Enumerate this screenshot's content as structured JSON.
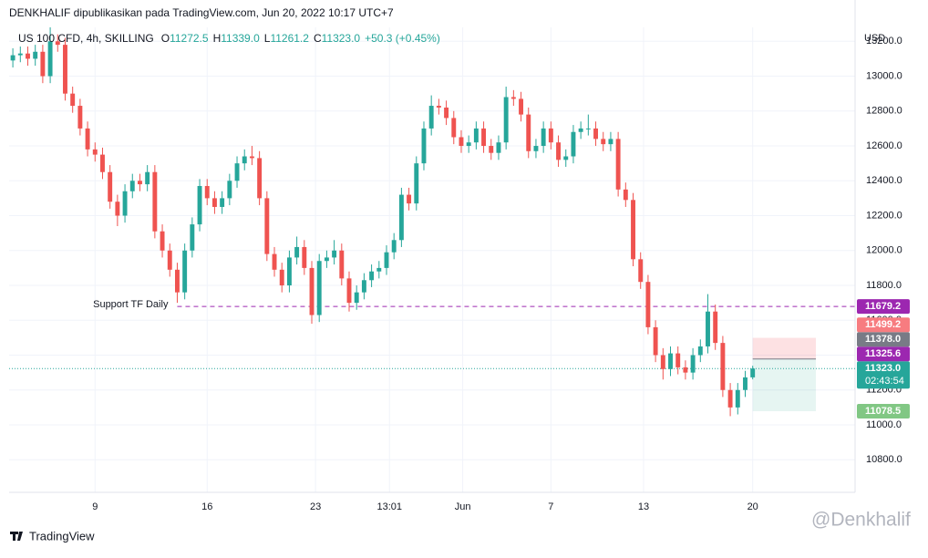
{
  "header": {
    "publisher": "DENKHALIF dipublikasikan pada TradingView.com, Jun 20, 2022 10:17 UTC+7",
    "symbol": "US 100 CFD, 4h, SKILLING",
    "items": [
      {
        "key": "O",
        "value": "11272.5"
      },
      {
        "key": "H",
        "value": "11339.0"
      },
      {
        "key": "L",
        "value": "11261.2"
      },
      {
        "key": "C",
        "value": "11323.0"
      }
    ],
    "change": "+50.3 (+0.45%)"
  },
  "footer": {
    "brand": "TradingView",
    "watermark": "@Denkhalif"
  },
  "chart_data": {
    "type": "candlestick",
    "currency": "USD",
    "up_color": "#26a69a",
    "down_color": "#ef5350",
    "grid": true,
    "x": [
      0,
      1,
      2,
      3,
      4,
      5,
      6,
      7,
      8,
      9,
      10,
      11,
      12,
      13,
      14,
      15,
      16,
      17,
      18,
      19,
      20,
      21,
      22,
      23,
      24,
      25,
      26,
      27,
      28,
      29,
      30,
      31,
      32,
      33,
      34,
      35,
      36,
      37,
      38,
      39,
      40,
      41,
      42,
      43,
      44,
      45,
      46,
      47,
      48,
      49,
      50,
      51,
      52,
      53,
      54,
      55,
      56,
      57,
      58,
      59,
      60,
      61,
      62,
      63,
      64,
      65,
      66,
      67,
      68,
      69,
      70,
      71,
      72,
      73,
      74,
      75,
      76,
      77,
      78,
      79,
      80,
      81,
      82,
      83,
      84,
      85,
      86,
      87,
      88,
      89,
      90,
      91,
      92,
      93,
      94,
      95,
      96,
      97,
      98,
      99
    ],
    "open": [
      13090,
      13120,
      13130,
      13100,
      13140,
      13000,
      13200,
      13180,
      12900,
      12830,
      12700,
      12580,
      12550,
      12450,
      12280,
      12200,
      12340,
      12400,
      12380,
      12450,
      12110,
      12000,
      11890,
      11760,
      12000,
      12150,
      12370,
      12300,
      12250,
      12300,
      12400,
      12500,
      12540,
      12530,
      12300,
      11980,
      11890,
      11800,
      11960,
      12020,
      11900,
      11630,
      11940,
      11960,
      12000,
      11840,
      11700,
      11760,
      11830,
      11880,
      11900,
      11990,
      12060,
      12320,
      12270,
      12500,
      12700,
      12830,
      12820,
      12760,
      12650,
      12600,
      12620,
      12700,
      12600,
      12560,
      12620,
      12880,
      12870,
      12780,
      12570,
      12600,
      12700,
      12620,
      12520,
      12540,
      12680,
      12700,
      12700,
      12640,
      12610,
      12640,
      12350,
      12290,
      11950,
      11820,
      11560,
      11400,
      11320,
      11410,
      11330,
      11300,
      11400,
      11450,
      11650,
      11470,
      11200,
      11100,
      11200,
      11272.5
    ],
    "high": [
      13160,
      13170,
      13170,
      13180,
      13180,
      13280,
      13240,
      13220,
      12940,
      12870,
      12740,
      12620,
      12590,
      12490,
      12320,
      12380,
      12440,
      12440,
      12490,
      12490,
      12150,
      12040,
      11930,
      12040,
      12190,
      12410,
      12410,
      12340,
      12340,
      12440,
      12540,
      12580,
      12600,
      12570,
      12340,
      12020,
      11930,
      12000,
      12080,
      12060,
      11940,
      11980,
      12000,
      12060,
      12040,
      11880,
      11800,
      11870,
      11920,
      11940,
      12030,
      12100,
      12360,
      12360,
      12540,
      12740,
      12890,
      12870,
      12860,
      12800,
      12690,
      12660,
      12740,
      12740,
      12640,
      12660,
      12940,
      12920,
      12910,
      12820,
      12640,
      12740,
      12740,
      12660,
      12580,
      12720,
      12740,
      12780,
      12740,
      12680,
      12680,
      12680,
      12390,
      12330,
      11990,
      11860,
      11600,
      11440,
      11450,
      11450,
      11370,
      11440,
      11490,
      11750,
      11690,
      11510,
      11240,
      11240,
      11310,
      11339
    ],
    "low": [
      13050,
      13080,
      13060,
      13060,
      12960,
      12960,
      13140,
      12860,
      12790,
      12660,
      12540,
      12510,
      12410,
      12240,
      12140,
      12160,
      12300,
      12340,
      12340,
      12070,
      11960,
      11850,
      11700,
      11720,
      11960,
      12110,
      12260,
      12210,
      12210,
      12260,
      12360,
      12460,
      12490,
      12260,
      11940,
      11850,
      11760,
      11760,
      11920,
      11860,
      11580,
      11590,
      11900,
      11920,
      11800,
      11650,
      11660,
      11720,
      11790,
      11840,
      11860,
      11950,
      12020,
      12230,
      12230,
      12460,
      12660,
      12780,
      12720,
      12610,
      12560,
      12560,
      12580,
      12560,
      12520,
      12520,
      12580,
      12830,
      12740,
      12530,
      12530,
      12560,
      12580,
      12480,
      12480,
      12500,
      12640,
      12660,
      12600,
      12570,
      12570,
      12310,
      12250,
      11910,
      11780,
      11520,
      11360,
      11260,
      11280,
      11290,
      11260,
      11260,
      11360,
      11410,
      11430,
      11160,
      11050,
      11060,
      11160,
      11261.2
    ],
    "close": [
      13120,
      13130,
      13100,
      13140,
      13000,
      13200,
      13180,
      12900,
      12830,
      12700,
      12580,
      12550,
      12450,
      12280,
      12200,
      12340,
      12400,
      12380,
      12450,
      12110,
      12000,
      11890,
      11760,
      12000,
      12150,
      12370,
      12300,
      12250,
      12300,
      12400,
      12500,
      12540,
      12530,
      12300,
      11980,
      11890,
      11800,
      11960,
      12020,
      11900,
      11630,
      11940,
      11960,
      12000,
      11840,
      11700,
      11760,
      11830,
      11880,
      11900,
      11990,
      12060,
      12320,
      12270,
      12500,
      12700,
      12830,
      12820,
      12760,
      12650,
      12600,
      12620,
      12700,
      12600,
      12560,
      12620,
      12880,
      12870,
      12780,
      12570,
      12600,
      12700,
      12620,
      12520,
      12540,
      12680,
      12700,
      12700,
      12640,
      12610,
      12640,
      12350,
      12290,
      11950,
      11820,
      11560,
      11400,
      11320,
      11410,
      11330,
      11300,
      11400,
      11450,
      11650,
      11470,
      11200,
      11100,
      11200,
      11272.5,
      11323
    ],
    "xlim": [
      -0.5,
      112.7
    ],
    "xticks": [
      {
        "value": 11,
        "label": "9"
      },
      {
        "value": 26,
        "label": "16"
      },
      {
        "value": 40.5,
        "label": "23"
      },
      {
        "value": 50.4,
        "label": "13:01"
      },
      {
        "value": 60.2,
        "label": "Jun"
      },
      {
        "value": 72,
        "label": "7"
      },
      {
        "value": 84.4,
        "label": "13"
      },
      {
        "value": 99,
        "label": "20"
      }
    ],
    "ylim": [
      10613,
      13280
    ],
    "yticks": [
      {
        "value": 10800,
        "label": "10800.0"
      },
      {
        "value": 11000,
        "label": "11000.0"
      },
      {
        "value": 11200,
        "label": "11200.0"
      },
      {
        "value": 11400,
        "label": "11400.0"
      },
      {
        "value": 11600,
        "label": "11600.0"
      },
      {
        "value": 11800,
        "label": "11800.0"
      },
      {
        "value": 12000,
        "label": "12000.0"
      },
      {
        "value": 12200,
        "label": "12200.0"
      },
      {
        "value": 12400,
        "label": "12400.0"
      },
      {
        "value": 12600,
        "label": "12600.0"
      },
      {
        "value": 12800,
        "label": "12800.0"
      },
      {
        "value": 13000,
        "label": "13000.0"
      },
      {
        "value": 13200,
        "label": "13200.0"
      }
    ],
    "support": {
      "label": "Support TF Daily",
      "start_x": 22
    },
    "price_tags": [
      {
        "value": 11679.2,
        "label": "11679.2",
        "color": "#9c27b0"
      },
      {
        "value": 11499.2,
        "label": "11499.2",
        "color": "#f77c80"
      },
      {
        "value": 11378,
        "label": "11378.0",
        "color": "#787b86"
      },
      {
        "value": 11325.6,
        "label": "11325.6",
        "color": "#9c27b0"
      },
      {
        "value": 11323,
        "label": "11323.0",
        "color": "#26a69a",
        "countdown": "02:43:54"
      },
      {
        "value": 11078.5,
        "label": "11078.5",
        "color": "#81c784"
      }
    ]
  }
}
